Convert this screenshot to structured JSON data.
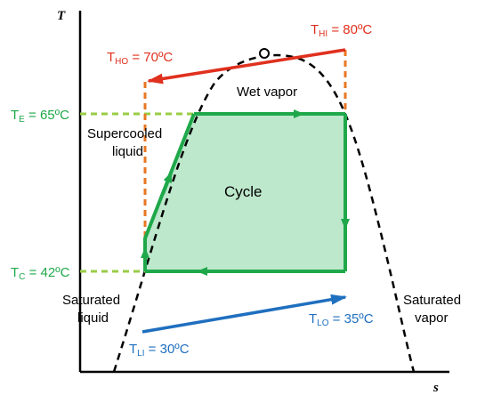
{
  "axes": {
    "x_label": "s",
    "y_label": "T"
  },
  "colors": {
    "hot": "#e0301e",
    "cold": "#1f6fbf",
    "cycle": "#1fa84a",
    "cycle_fill": "#bde8cc",
    "dashed_orange": "#e87722",
    "dashed_green": "#99cc44",
    "dome": "#000000"
  },
  "streams": {
    "hot_inlet": {
      "symbol": "T",
      "sub": "HI",
      "value": " = 80ºC"
    },
    "hot_outlet": {
      "symbol": "T",
      "sub": "HO",
      "value": " = 70ºC"
    },
    "cold_inlet": {
      "symbol": "T",
      "sub": "LI",
      "value": " = 30ºC"
    },
    "cold_outlet": {
      "symbol": "T",
      "sub": "LO",
      "value": " = 35ºC"
    }
  },
  "levels": {
    "evaporation": {
      "symbol": "T",
      "sub": "E",
      "value": " = 65ºC"
    },
    "condensation": {
      "symbol": "T",
      "sub": "C",
      "value": " = 42ºC"
    }
  },
  "regions": {
    "wet_vapor": "Wet vapor",
    "supercooled_1": "Supercooled",
    "supercooled_2": "liquid",
    "cycle": "Cycle",
    "sat_liquid_1": "Saturated",
    "sat_liquid_2": "liquid",
    "sat_vapor_1": "Saturated",
    "sat_vapor_2": "vapor"
  }
}
